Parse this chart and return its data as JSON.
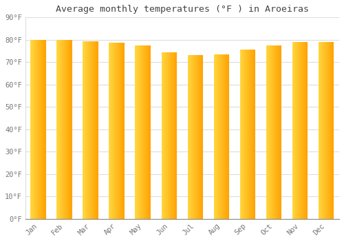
{
  "title": "Average monthly temperatures (°F ) in Aroeiras",
  "months": [
    "Jan",
    "Feb",
    "Mar",
    "Apr",
    "May",
    "Jun",
    "Jul",
    "Aug",
    "Sep",
    "Oct",
    "Nov",
    "Dec"
  ],
  "values": [
    80.0,
    80.0,
    79.2,
    78.6,
    77.5,
    74.5,
    73.2,
    73.5,
    75.5,
    77.5,
    79.0,
    79.0
  ],
  "bar_color_left": "#FFD740",
  "bar_color_right": "#FFA000",
  "background_color": "#FFFFFF",
  "grid_color": "#DDDDDD",
  "text_color": "#777777",
  "title_color": "#444444",
  "ylim": [
    0,
    90
  ],
  "yticks": [
    0,
    10,
    20,
    30,
    40,
    50,
    60,
    70,
    80,
    90
  ],
  "ytick_labels": [
    "0°F",
    "10°F",
    "20°F",
    "30°F",
    "40°F",
    "50°F",
    "60°F",
    "70°F",
    "80°F",
    "90°F"
  ],
  "figsize": [
    5.0,
    3.5
  ],
  "dpi": 100,
  "bar_width": 0.6,
  "n_grad": 200
}
